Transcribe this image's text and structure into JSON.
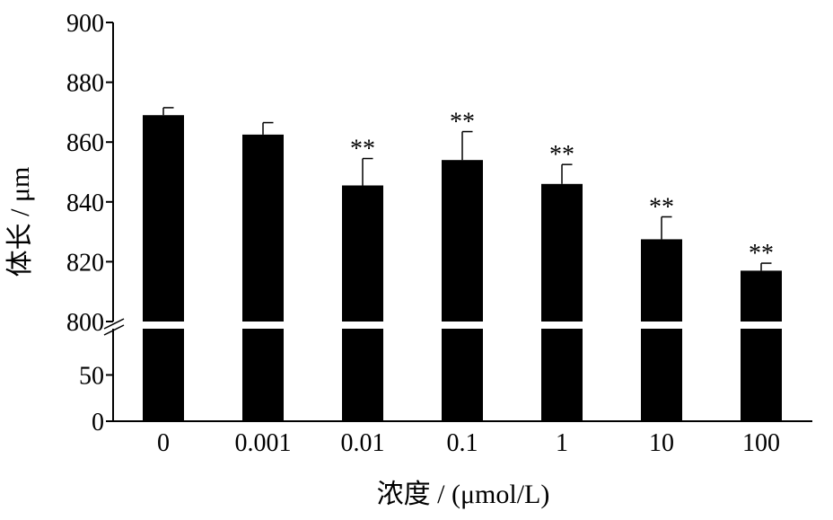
{
  "chart_data": {
    "type": "bar",
    "xlabel": "浓度 / (μmol/L)",
    "ylabel": "体长 / μm",
    "categories": [
      "0",
      "0.001",
      "0.01",
      "0.1",
      "1",
      "10",
      "100"
    ],
    "values": [
      869,
      862.5,
      845.5,
      854,
      846,
      827.5,
      817
    ],
    "errors": [
      2.5,
      4,
      9,
      9.5,
      6.5,
      7.5,
      2.5
    ],
    "significance": [
      "",
      "",
      "**",
      "**",
      "**",
      "**",
      "**"
    ],
    "axis_break": {
      "lower": [
        0,
        100
      ],
      "upper": [
        800,
        900
      ]
    },
    "y_ticks_upper": [
      "800",
      "820",
      "840",
      "860",
      "880",
      "900"
    ],
    "y_ticks_lower": [
      "0",
      "50"
    ],
    "bar_color": "#000000",
    "grid": false
  }
}
